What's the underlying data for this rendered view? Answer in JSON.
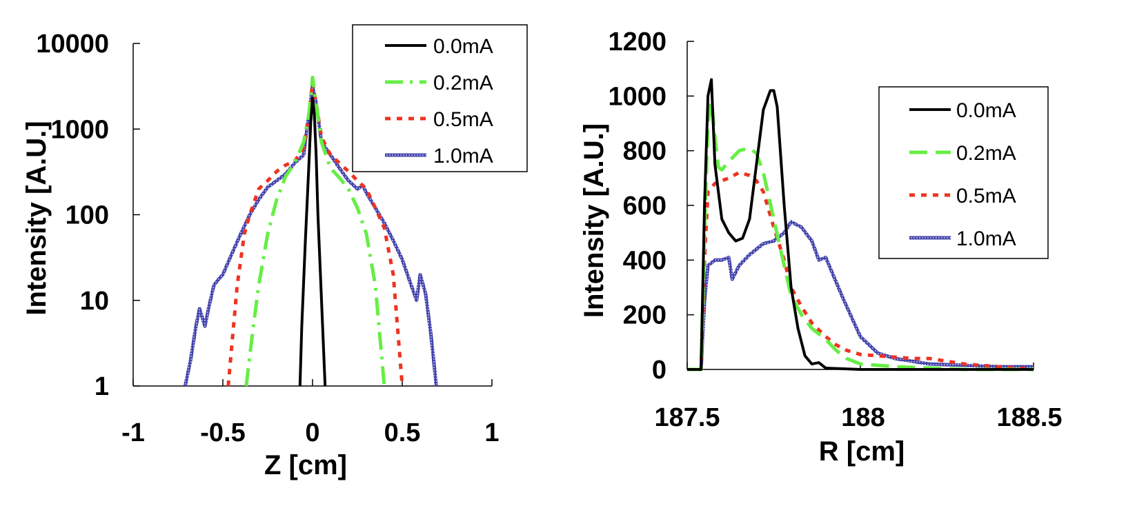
{
  "chart_data": [
    {
      "type": "line",
      "xlabel": "Z [cm]",
      "ylabel": "Intensity [A.U.]",
      "xlim": [
        -1,
        1
      ],
      "ylim": [
        1,
        10000
      ],
      "yscale": "log",
      "x_ticks": [
        "-1",
        "-0.5",
        "0",
        "0.5",
        "1"
      ],
      "y_ticks": [
        "1",
        "10",
        "100",
        "1000",
        "10000"
      ],
      "grid": false,
      "legend_position": "top-right",
      "series": [
        {
          "name": "0.0mA",
          "color": "#000000",
          "style": "solid",
          "x": [
            -0.07,
            -0.06,
            -0.04,
            -0.02,
            -0.01,
            0,
            0.01,
            0.02,
            0.03,
            0.05,
            0.07
          ],
          "y": [
            1,
            5,
            50,
            400,
            1200,
            2300,
            1500,
            500,
            100,
            10,
            1
          ]
        },
        {
          "name": "0.2mA",
          "color": "#66ee44",
          "style": "dashdot",
          "x": [
            -0.37,
            -0.33,
            -0.3,
            -0.25,
            -0.2,
            -0.15,
            -0.1,
            -0.05,
            -0.02,
            0,
            0.02,
            0.05,
            0.1,
            0.15,
            0.2,
            0.25,
            0.3,
            0.35,
            0.4
          ],
          "y": [
            1,
            5,
            15,
            60,
            150,
            280,
            400,
            700,
            1500,
            4000,
            2000,
            700,
            350,
            270,
            200,
            120,
            60,
            15,
            1
          ]
        },
        {
          "name": "0.5mA",
          "color": "#ee3322",
          "style": "dotted",
          "x": [
            -0.47,
            -0.45,
            -0.42,
            -0.38,
            -0.35,
            -0.3,
            -0.25,
            -0.2,
            -0.15,
            -0.1,
            -0.05,
            -0.02,
            0,
            0.02,
            0.05,
            0.1,
            0.15,
            0.2,
            0.25,
            0.3,
            0.35,
            0.4,
            0.45,
            0.5
          ],
          "y": [
            1,
            3,
            15,
            60,
            100,
            200,
            250,
            320,
            380,
            420,
            600,
            1500,
            3500,
            2000,
            800,
            500,
            400,
            320,
            250,
            200,
            120,
            70,
            20,
            1
          ]
        },
        {
          "name": "1.0mA",
          "color": "#4444aa",
          "style": "hatched",
          "x": [
            -0.71,
            -0.68,
            -0.65,
            -0.63,
            -0.6,
            -0.58,
            -0.55,
            -0.52,
            -0.5,
            -0.45,
            -0.4,
            -0.35,
            -0.3,
            -0.25,
            -0.2,
            -0.15,
            -0.1,
            -0.05,
            -0.02,
            0,
            0.02,
            0.05,
            0.1,
            0.15,
            0.2,
            0.25,
            0.28,
            0.3,
            0.35,
            0.4,
            0.45,
            0.5,
            0.55,
            0.58,
            0.6,
            0.63,
            0.66,
            0.69
          ],
          "y": [
            1,
            2,
            5,
            8,
            5,
            8,
            15,
            18,
            20,
            35,
            60,
            100,
            150,
            210,
            250,
            300,
            400,
            500,
            1500,
            3200,
            2000,
            700,
            500,
            350,
            250,
            200,
            220,
            180,
            120,
            80,
            50,
            30,
            15,
            10,
            20,
            12,
            4,
            1
          ]
        }
      ]
    },
    {
      "type": "line",
      "xlabel": "R [cm]",
      "ylabel": "Intensity [A.U.]",
      "xlim": [
        187.5,
        188.5
      ],
      "ylim": [
        0,
        1200
      ],
      "x_ticks": [
        "187.5",
        "188",
        "188.5"
      ],
      "y_ticks": [
        "0",
        "200",
        "400",
        "600",
        "800",
        "1000",
        "1200"
      ],
      "grid": false,
      "legend_position": "top-right",
      "series": [
        {
          "name": "0.0mA",
          "color": "#000000",
          "style": "solid",
          "x": [
            187.5,
            187.54,
            187.55,
            187.56,
            187.57,
            187.58,
            187.6,
            187.62,
            187.64,
            187.66,
            187.68,
            187.7,
            187.72,
            187.74,
            187.75,
            187.76,
            187.78,
            187.8,
            187.82,
            187.84,
            187.86,
            187.88,
            187.9,
            188.0,
            188.2,
            188.5
          ],
          "y": [
            0,
            0,
            600,
            1000,
            1060,
            750,
            550,
            500,
            470,
            480,
            550,
            750,
            950,
            1020,
            1020,
            960,
            600,
            300,
            150,
            50,
            20,
            25,
            5,
            0,
            0,
            0
          ]
        },
        {
          "name": "0.2mA",
          "color": "#66ee44",
          "style": "dashed",
          "x": [
            187.5,
            187.54,
            187.55,
            187.56,
            187.57,
            187.58,
            187.59,
            187.6,
            187.62,
            187.65,
            187.68,
            187.7,
            187.72,
            187.75,
            187.78,
            187.8,
            187.83,
            187.86,
            187.9,
            187.93,
            187.96,
            188.0,
            188.05,
            188.1,
            188.2,
            188.3,
            188.5
          ],
          "y": [
            0,
            0,
            500,
            900,
            980,
            850,
            740,
            730,
            760,
            800,
            810,
            790,
            720,
            550,
            380,
            270,
            200,
            150,
            110,
            70,
            40,
            20,
            15,
            10,
            5,
            0,
            0
          ]
        },
        {
          "name": "0.5mA",
          "color": "#ee3322",
          "style": "dotted",
          "x": [
            187.5,
            187.54,
            187.55,
            187.56,
            187.58,
            187.6,
            187.62,
            187.65,
            187.68,
            187.7,
            187.72,
            187.75,
            187.78,
            187.8,
            187.83,
            187.86,
            187.9,
            187.93,
            187.96,
            188.0,
            188.05,
            188.1,
            188.15,
            188.2,
            188.25,
            188.3,
            188.4,
            188.5
          ],
          "y": [
            0,
            0,
            400,
            650,
            680,
            690,
            700,
            720,
            710,
            690,
            650,
            520,
            400,
            300,
            230,
            170,
            120,
            90,
            70,
            55,
            50,
            45,
            40,
            40,
            30,
            20,
            10,
            0
          ]
        },
        {
          "name": "1.0mA",
          "color": "#4444aa",
          "style": "hatched",
          "x": [
            187.5,
            187.54,
            187.55,
            187.56,
            187.58,
            187.6,
            187.62,
            187.63,
            187.65,
            187.68,
            187.7,
            187.72,
            187.75,
            187.78,
            187.8,
            187.83,
            187.86,
            187.88,
            187.9,
            187.92,
            187.95,
            188.0,
            188.05,
            188.1,
            188.2,
            188.3,
            188.4,
            188.5
          ],
          "y": [
            0,
            0,
            250,
            380,
            400,
            400,
            410,
            330,
            380,
            420,
            440,
            460,
            470,
            500,
            540,
            520,
            470,
            400,
            410,
            350,
            260,
            120,
            60,
            40,
            20,
            15,
            10,
            10
          ]
        }
      ]
    }
  ]
}
